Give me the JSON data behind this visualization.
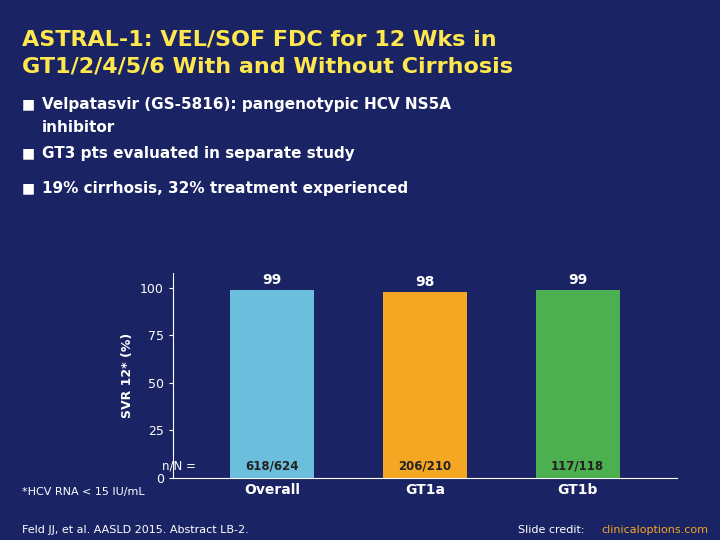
{
  "title_line1": "ASTRAL-1: VEL/SOF FDC for 12 Wks in",
  "title_line2": "GT1/2/4/5/6 With and Without Cirrhosis",
  "title_color": "#FFE84D",
  "background_color": "#1a2464",
  "bullets": [
    "Velpatasvir (GS-5816): pangenotypic HCV NS5A\ninhibitor",
    "GT3 pts evaluated in separate study",
    "19% cirrhosis, 32% treatment experienced"
  ],
  "bullet_color": "#FFFFFF",
  "categories": [
    "Overall",
    "GT1a",
    "GT1b"
  ],
  "values": [
    99,
    98,
    99
  ],
  "bar_colors": [
    "#6BBFDC",
    "#F5A623",
    "#4CAF50"
  ],
  "n_labels": [
    "618/624",
    "206/210",
    "117/118"
  ],
  "bar_top_labels": [
    "99",
    "98",
    "99"
  ],
  "ylabel": "SVR 12* (%)",
  "ylabel_color": "#FFFFFF",
  "ylim": [
    0,
    108
  ],
  "yticks": [
    0,
    25,
    50,
    75,
    100
  ],
  "axis_label_color": "#FFFFFF",
  "tick_color": "#FFFFFF",
  "n_label_prefix": "n/N =",
  "footnote": "*HCV RNA < 15 IU/mL",
  "citation": "Feld JJ, et al. AASLD 2015. Abstract LB-2.",
  "slide_credit": "Slide credit: clinicaloptions.com",
  "footnote_color": "#FFFFFF",
  "citation_color": "#FFFFFF",
  "n_label_color": "#FFFFFF",
  "bar_value_color": "#FFFFFF",
  "bar_n_text_color": "#1a1a1a",
  "credit_link_color": "#F5A623"
}
